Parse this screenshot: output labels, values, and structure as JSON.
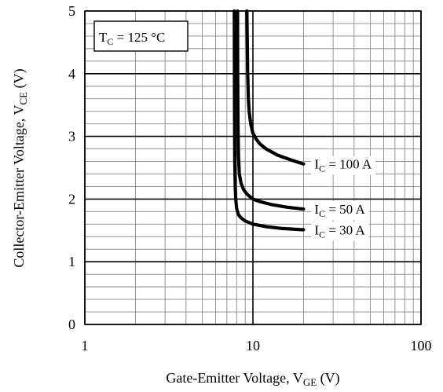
{
  "chart_data": {
    "type": "line",
    "x_scale": "log",
    "xlim": [
      1,
      100
    ],
    "ylim": [
      0,
      5
    ],
    "x_ticks": [
      {
        "value": 1,
        "label": "1"
      },
      {
        "value": 10,
        "label": "10"
      },
      {
        "value": 100,
        "label": "100"
      }
    ],
    "y_ticks": [
      {
        "value": 0,
        "label": "0"
      },
      {
        "value": 1,
        "label": "1"
      },
      {
        "value": 2,
        "label": "2"
      },
      {
        "value": 3,
        "label": "3"
      },
      {
        "value": 4,
        "label": "4"
      },
      {
        "value": 5,
        "label": "5"
      }
    ],
    "xlabel": {
      "main": "Gate-Emitter Voltage, V",
      "sub": "GE",
      "unit": " (V)"
    },
    "ylabel": {
      "main": "Collector-Emitter Voltage, V",
      "sub": "CE",
      "unit": " (V)"
    },
    "condition": {
      "main": "T",
      "sub": "C",
      "rest": " = 125 °C"
    },
    "grid": true,
    "series": [
      {
        "name": "I_C = 100 A",
        "label": {
          "main": "I",
          "sub": "C",
          "rest": " = 100 A"
        },
        "x": [
          9.2,
          9.25,
          9.3,
          9.4,
          9.5,
          9.7,
          10.0,
          10.5,
          11.0,
          12.0,
          14.0,
          17.0,
          20.0
        ],
        "y": [
          5.0,
          4.5,
          4.0,
          3.6,
          3.4,
          3.2,
          3.05,
          2.95,
          2.88,
          2.8,
          2.7,
          2.62,
          2.56
        ]
      },
      {
        "name": "I_C = 50 A",
        "label": {
          "main": "I",
          "sub": "C",
          "rest": " = 50 A"
        },
        "x": [
          8.1,
          8.12,
          8.15,
          8.2,
          8.3,
          8.5,
          8.8,
          9.2,
          10.0,
          11.0,
          13.0,
          16.0,
          20.0
        ],
        "y": [
          5.0,
          4.0,
          3.2,
          2.7,
          2.4,
          2.25,
          2.15,
          2.08,
          2.0,
          1.96,
          1.91,
          1.87,
          1.84
        ]
      },
      {
        "name": "I_C = 30 A",
        "label": {
          "main": "I",
          "sub": "C",
          "rest": " = 30 A"
        },
        "x": [
          7.75,
          7.77,
          7.8,
          7.85,
          7.9,
          8.0,
          8.2,
          8.5,
          9.0,
          10.0,
          12.0,
          15.0,
          20.0
        ],
        "y": [
          5.0,
          3.5,
          2.6,
          2.2,
          2.0,
          1.85,
          1.75,
          1.7,
          1.65,
          1.6,
          1.56,
          1.53,
          1.51
        ]
      }
    ]
  }
}
